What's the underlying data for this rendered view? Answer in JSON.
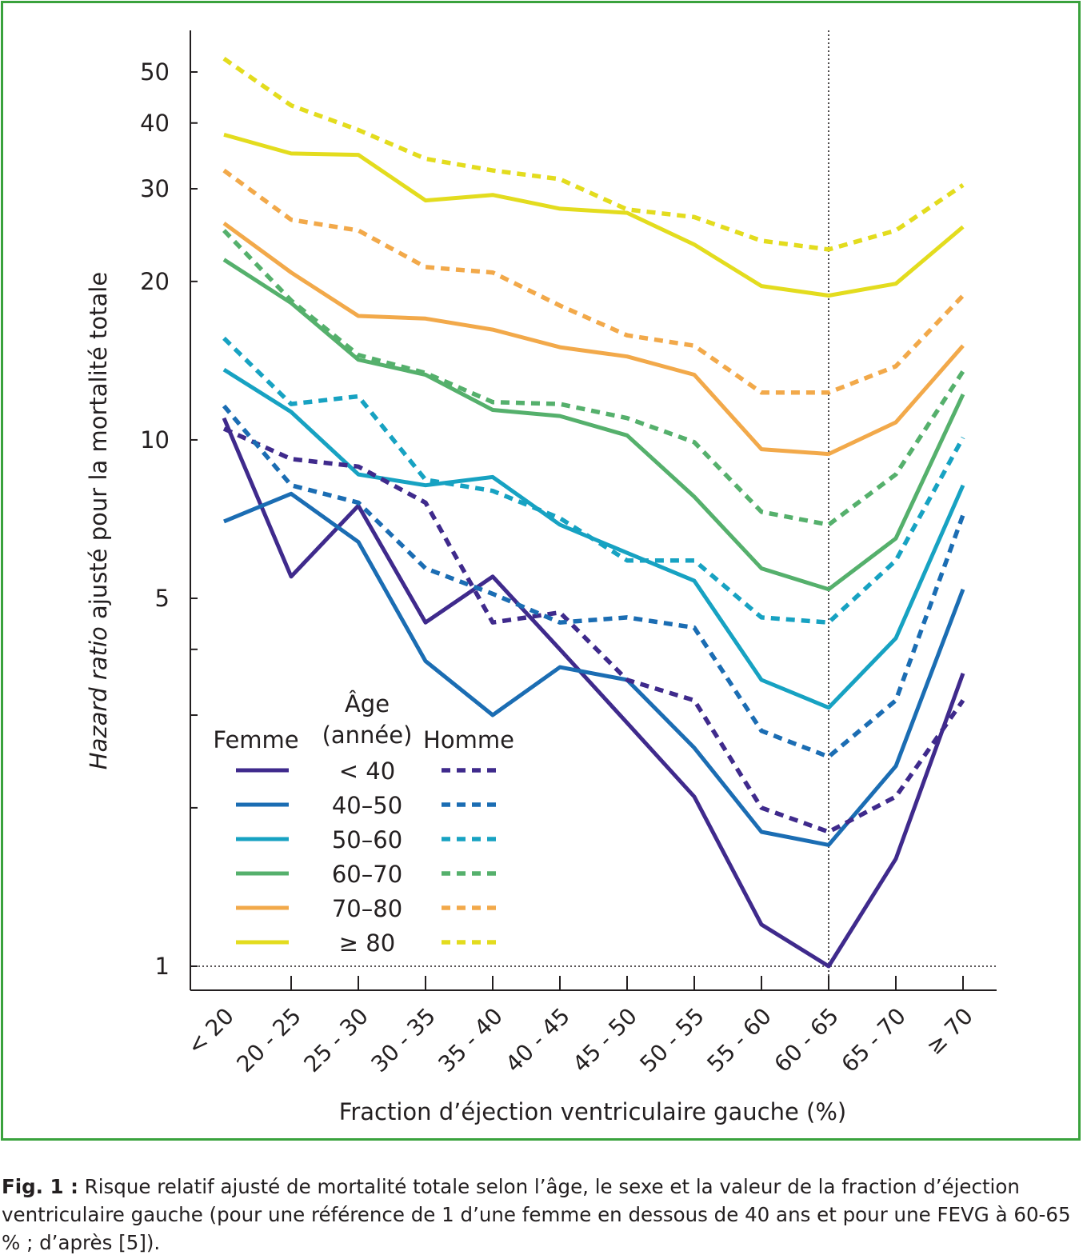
{
  "chart_data": {
    "type": "line",
    "xlabel": "Fraction d’éjection ventriculaire gauche (%)",
    "ylabel_italic": "Hazard ratio",
    "ylabel_rest": " ajusté pour la mortalité totale",
    "y_scale": "log",
    "ylim": [
      0.95,
      60
    ],
    "yticks": [
      1,
      2,
      3,
      4,
      5,
      10,
      20,
      30,
      40,
      50
    ],
    "ytick_labels": [
      "1",
      "",
      "",
      "",
      "5",
      "10",
      "20",
      "30",
      "40",
      "50"
    ],
    "reference_line_y": 1,
    "reference_line_x": "60 - 65",
    "categories": [
      "< 20",
      "20 - 25",
      "25 - 30",
      "30 - 35",
      "35 - 40",
      "40 - 45",
      "45 - 50",
      "50 - 55",
      "55 - 60",
      "60 - 65",
      "65 - 70",
      "≥ 70"
    ],
    "legend": {
      "age_title_line1": "Âge",
      "age_title_line2": "(année)",
      "female_label": "Femme",
      "male_label": "Homme",
      "groups": [
        "< 40",
        "40–50",
        "50–60",
        "60–70",
        "70–80",
        "≥ 80"
      ]
    },
    "series": [
      {
        "age": "< 40",
        "sex": "Femme",
        "style": "solid",
        "color": "#3f2a8c",
        "values": [
          11.0,
          5.5,
          7.5,
          4.5,
          5.5,
          4.0,
          2.9,
          2.1,
          1.2,
          1.0,
          1.6,
          3.6
        ]
      },
      {
        "age": "40–50",
        "sex": "Femme",
        "style": "solid",
        "color": "#1b6db3",
        "values": [
          7.0,
          7.9,
          6.4,
          3.8,
          3.0,
          3.7,
          3.5,
          2.6,
          1.8,
          1.7,
          2.4,
          5.2
        ]
      },
      {
        "age": "50–60",
        "sex": "Femme",
        "style": "solid",
        "color": "#17a2c2",
        "values": [
          13.6,
          11.3,
          8.6,
          8.2,
          8.5,
          6.9,
          6.1,
          5.4,
          3.5,
          3.1,
          4.2,
          8.2
        ]
      },
      {
        "age": "60–70",
        "sex": "Femme",
        "style": "solid",
        "color": "#55b06c",
        "values": [
          22.0,
          18.2,
          14.2,
          13.3,
          11.4,
          11.1,
          10.2,
          7.8,
          5.7,
          5.2,
          6.5,
          12.2
        ]
      },
      {
        "age": "70–80",
        "sex": "Femme",
        "style": "solid",
        "color": "#f2a94a",
        "values": [
          25.8,
          20.8,
          17.2,
          17.0,
          16.2,
          15.0,
          14.4,
          13.3,
          9.6,
          9.4,
          10.8,
          15.1
        ]
      },
      {
        "age": "≥ 80",
        "sex": "Femme",
        "style": "solid",
        "color": "#e3dc1e",
        "values": [
          38.0,
          35.0,
          34.8,
          28.5,
          29.2,
          27.5,
          27.0,
          23.5,
          19.6,
          18.8,
          19.8,
          25.4
        ]
      },
      {
        "age": "< 40",
        "sex": "Homme",
        "style": "dotted",
        "color": "#3f2a8c",
        "values": [
          10.5,
          9.2,
          8.9,
          7.6,
          4.5,
          4.7,
          3.5,
          3.2,
          2.0,
          1.8,
          2.1,
          3.2
        ]
      },
      {
        "age": "40–50",
        "sex": "Homme",
        "style": "dotted",
        "color": "#1b6db3",
        "values": [
          11.6,
          8.2,
          7.6,
          5.7,
          5.1,
          4.5,
          4.6,
          4.4,
          2.8,
          2.5,
          3.2,
          7.2
        ]
      },
      {
        "age": "50–60",
        "sex": "Homme",
        "style": "dotted",
        "color": "#17a2c2",
        "values": [
          15.6,
          11.7,
          12.1,
          8.4,
          8.0,
          7.1,
          5.9,
          5.9,
          4.6,
          4.5,
          5.9,
          10.1
        ]
      },
      {
        "age": "60–70",
        "sex": "Homme",
        "style": "dotted",
        "color": "#55b06c",
        "values": [
          25.0,
          18.4,
          14.5,
          13.4,
          11.8,
          11.7,
          11.0,
          9.9,
          7.3,
          6.9,
          8.6,
          13.5
        ]
      },
      {
        "age": "70–80",
        "sex": "Homme",
        "style": "dotted",
        "color": "#f2a94a",
        "values": [
          32.5,
          26.2,
          25.0,
          21.3,
          20.8,
          18.0,
          15.8,
          15.1,
          12.3,
          12.3,
          13.8,
          18.8
        ]
      },
      {
        "age": "≥ 80",
        "sex": "Homme",
        "style": "dotted",
        "color": "#e3dc1e",
        "values": [
          53.0,
          43.2,
          38.8,
          34.2,
          32.5,
          31.3,
          27.4,
          26.5,
          23.9,
          23.0,
          25.0,
          30.5
        ]
      }
    ]
  },
  "caption": {
    "label": "Fig. 1 :",
    "text": " Risque relatif ajusté de mortalité totale selon l’âge, le sexe et la valeur de la fraction d’éjection ventriculaire gauche (pour une référence de 1 d’une femme en dessous de 40 ans et pour une FEVG à 60-65 % ; d’après [5])."
  },
  "colors": {
    "frame": "#3aa23d",
    "axis": "#231f20"
  }
}
